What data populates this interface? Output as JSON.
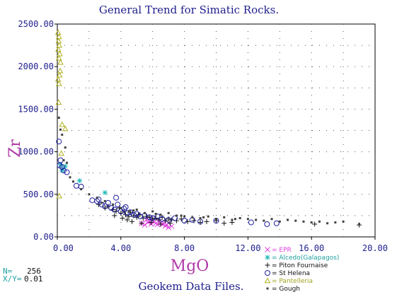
{
  "chart_data": {
    "type": "scatter",
    "title": "General Trend for Simatic Rocks.",
    "xlabel": "MgO",
    "ylabel": "Zr",
    "xlim": [
      0,
      20
    ],
    "ylim": [
      0,
      2500
    ],
    "x_ticks": [
      "0.00",
      "4.00",
      "8.00",
      "12.00",
      "16.00",
      "20.00"
    ],
    "y_ticks": [
      "0.00",
      "500.00",
      "1000.00",
      "1500.00",
      "2000.00",
      "2500.00"
    ],
    "grid": "dotted",
    "legend_position": "bottom-right",
    "footer": "Geokem Data Files.",
    "stats": {
      "n_label": "N=",
      "n_value": "256",
      "xy_label": "X/Y=",
      "xy_value": "0.01"
    },
    "series": [
      {
        "name": "EPR",
        "marker": "x",
        "color": "#e040e0",
        "x": [
          5.3,
          5.5,
          5.7,
          5.9,
          6.0,
          6.2,
          6.4,
          6.6,
          6.8,
          7.0,
          5.6,
          6.1,
          6.3,
          6.5,
          6.9,
          7.2,
          5.8,
          6.7
        ],
        "y": [
          160,
          140,
          170,
          150,
          190,
          160,
          180,
          150,
          130,
          110,
          200,
          175,
          145,
          165,
          140,
          125,
          185,
          155
        ]
      },
      {
        "name": "Alcedo(Galapagos)",
        "marker": "asterisk",
        "color": "#20b8b8",
        "x": [
          0.2,
          0.3,
          0.5,
          1.4,
          3.0,
          0.35
        ],
        "y": [
          850,
          780,
          830,
          660,
          520,
          800
        ]
      },
      {
        "name": "Piton Fournaise",
        "marker": "plus",
        "color": "#101010",
        "x": [
          2.6,
          3.0,
          3.2,
          3.5,
          3.7,
          3.9,
          4.0,
          4.2,
          4.3,
          4.5,
          4.6,
          4.8,
          5.0,
          5.2,
          5.4,
          5.6,
          5.8,
          6.0,
          6.2,
          6.4,
          6.6,
          6.8,
          7.0,
          7.2,
          7.5,
          7.8,
          8.2,
          8.6,
          9.0,
          9.4,
          10.0,
          10.5,
          11.0,
          3.6,
          4.1,
          4.7,
          5.3,
          5.9,
          6.5,
          7.1,
          16.2,
          19.0,
          4.4,
          5.1
        ],
        "y": [
          380,
          340,
          360,
          320,
          300,
          340,
          280,
          300,
          260,
          240,
          290,
          250,
          230,
          260,
          220,
          240,
          230,
          210,
          220,
          200,
          230,
          190,
          210,
          200,
          190,
          210,
          180,
          190,
          170,
          180,
          190,
          160,
          170,
          250,
          220,
          180,
          160,
          170,
          150,
          160,
          150,
          140,
          200,
          260
        ]
      },
      {
        "name": "St Helena",
        "marker": "circle",
        "color": "#2020a0",
        "x": [
          0.1,
          0.2,
          0.15,
          0.3,
          0.4,
          0.6,
          1.2,
          1.5,
          2.2,
          2.5,
          2.8,
          3.0,
          3.2,
          3.4,
          3.6,
          3.8,
          4.0,
          4.2,
          4.4,
          4.6,
          4.8,
          5.0,
          5.2,
          5.5,
          5.8,
          6.0,
          6.3,
          6.6,
          7.0,
          7.4,
          8.0,
          8.5,
          9.0,
          10.0,
          12.2,
          13.2,
          13.8,
          2.6,
          3.7,
          4.3
        ],
        "y": [
          1120,
          900,
          840,
          820,
          780,
          760,
          600,
          590,
          430,
          420,
          380,
          360,
          400,
          340,
          320,
          380,
          300,
          330,
          280,
          290,
          260,
          270,
          240,
          250,
          230,
          220,
          240,
          210,
          200,
          220,
          190,
          200,
          180,
          190,
          170,
          150,
          160,
          440,
          460,
          350
        ]
      },
      {
        "name": "Pantelleria",
        "marker": "triangle",
        "color": "#b0b020",
        "x": [
          0.05,
          0.1,
          0.08,
          0.12,
          0.06,
          0.15,
          0.1,
          0.2,
          0.18,
          0.14,
          0.05,
          0.1,
          0.3,
          0.5,
          0.25,
          0.08,
          0.12
        ],
        "y": [
          2400,
          2350,
          2300,
          2250,
          2200,
          2150,
          2100,
          2050,
          1950,
          1900,
          1850,
          1800,
          1320,
          1270,
          980,
          1580,
          480
        ]
      },
      {
        "name": "Gough",
        "marker": "square",
        "color": "#404040",
        "x": [
          0.1,
          0.3,
          0.5,
          0.8,
          1.0,
          1.5,
          2.0,
          2.5,
          3.0,
          3.5,
          4.0,
          4.5,
          5.0,
          5.5,
          6.0,
          6.5,
          7.0,
          7.5,
          8.0,
          8.5,
          9.0,
          9.5,
          10.0,
          10.5,
          11.0,
          11.5,
          12.0,
          12.5,
          13.0,
          13.5,
          14.0,
          14.5,
          15.0,
          15.5,
          16.0,
          16.5,
          17.0,
          17.5,
          18.0,
          19.0,
          0.4,
          0.6,
          2.8,
          4.8,
          6.2,
          7.8,
          9.2,
          11.2,
          0.2
        ],
        "y": [
          1400,
          1200,
          1050,
          700,
          650,
          560,
          500,
          460,
          420,
          380,
          340,
          300,
          320,
          280,
          300,
          260,
          280,
          250,
          240,
          230,
          220,
          240,
          210,
          230,
          200,
          220,
          210,
          200,
          190,
          210,
          180,
          200,
          190,
          180,
          170,
          180,
          160,
          170,
          180,
          150,
          900,
          870,
          400,
          310,
          270,
          250,
          230,
          210,
          1260
        ]
      }
    ]
  }
}
